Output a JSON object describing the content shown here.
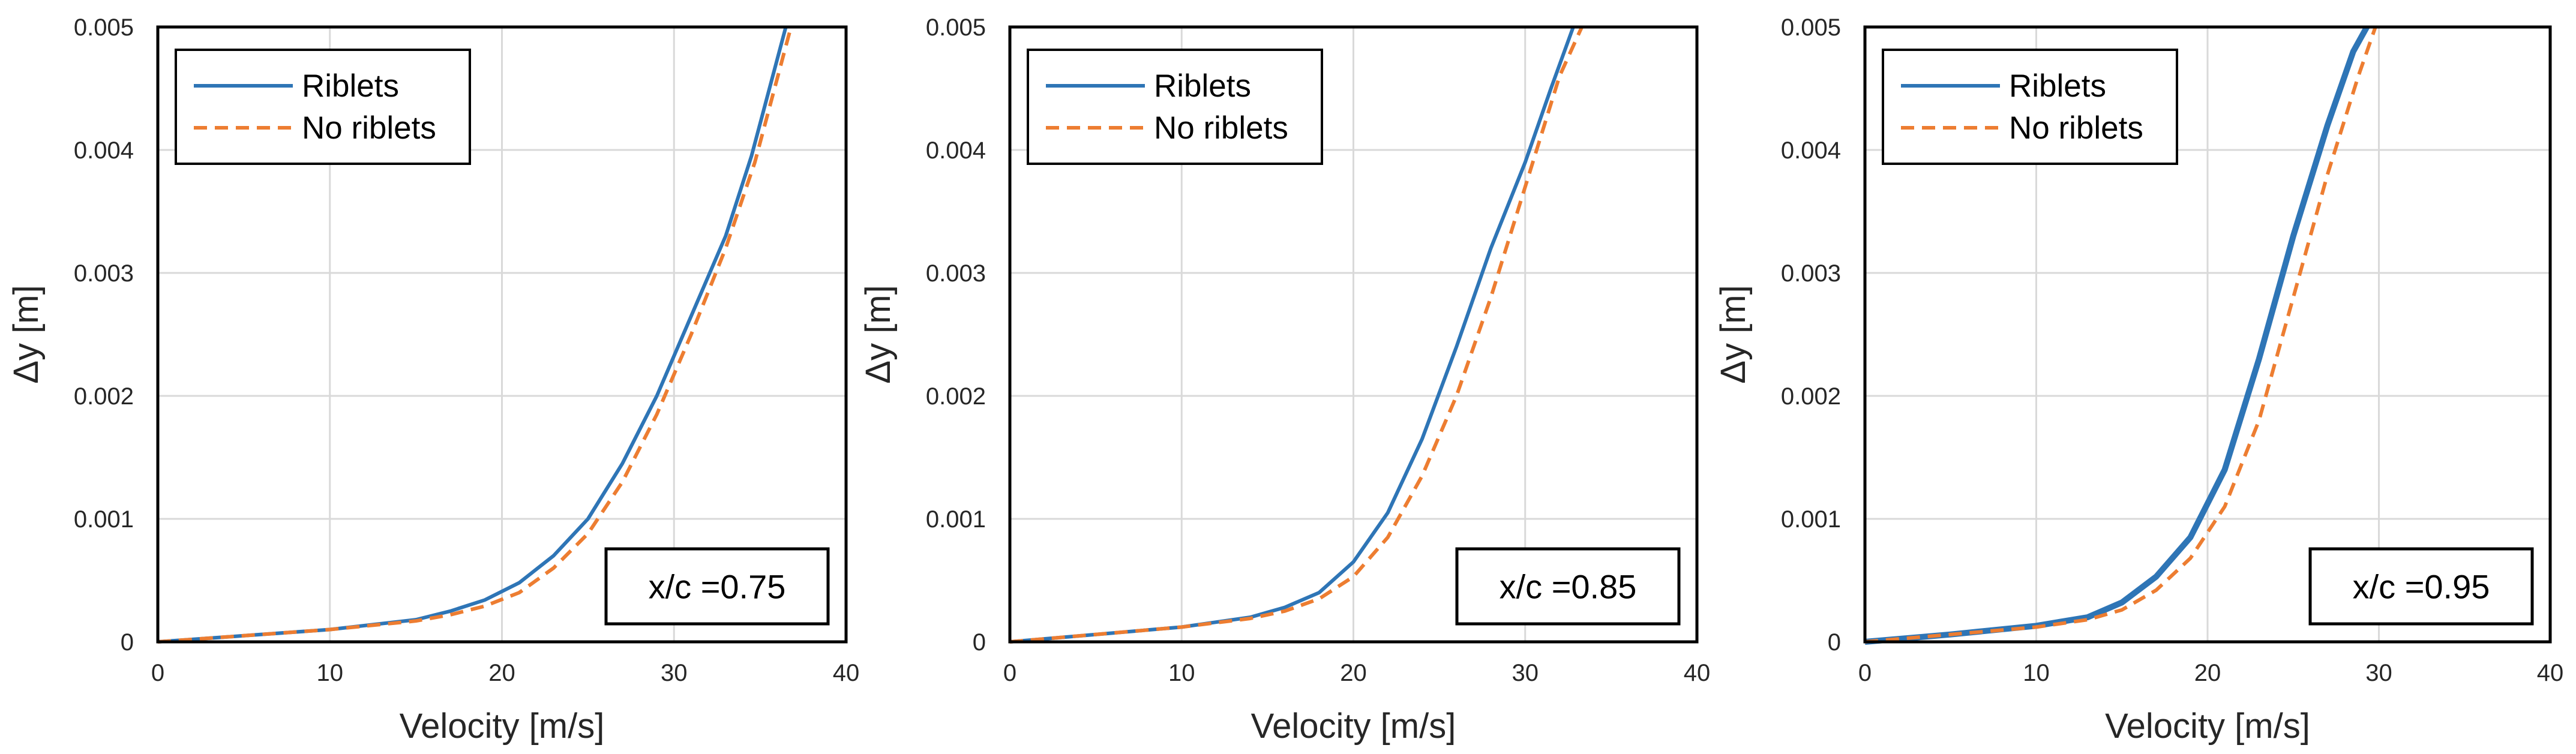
{
  "colors": {
    "riblets": "#2E75B6",
    "no_riblets": "#ED7D31",
    "grid": "#D9D9D9",
    "frame": "#000000"
  },
  "chart_data": [
    {
      "type": "line",
      "xlabel": "Velocity [m/s]",
      "ylabel": "Δy [m]",
      "xlim": [
        0,
        40
      ],
      "ylim": [
        0,
        0.005
      ],
      "xticks": [
        "0",
        "10",
        "20",
        "30",
        "40"
      ],
      "yticks": [
        "0",
        "0.001",
        "0.002",
        "0.003",
        "0.004",
        "0.005"
      ],
      "annotation": "x/c =0.75",
      "grid": true,
      "legend_position": "top-left",
      "series": [
        {
          "name": "Riblets",
          "style": "solid",
          "x": [
            0,
            5,
            10,
            15,
            17,
            19,
            21,
            23,
            25,
            27,
            29,
            31,
            33,
            34.5,
            36.5
          ],
          "y": [
            0,
            5e-05,
            0.0001,
            0.00018,
            0.00025,
            0.00034,
            0.00048,
            0.0007,
            0.001,
            0.00145,
            0.002,
            0.00265,
            0.0033,
            0.00395,
            0.005
          ]
        },
        {
          "name": "No riblets",
          "style": "dashed",
          "x": [
            0,
            5,
            10,
            15,
            17,
            19,
            21,
            23,
            25,
            27,
            29,
            31,
            33,
            34.7,
            36.8
          ],
          "y": [
            0,
            5e-05,
            0.0001,
            0.00017,
            0.00022,
            0.00029,
            0.0004,
            0.0006,
            0.00088,
            0.0013,
            0.00185,
            0.0025,
            0.0032,
            0.0039,
            0.005
          ]
        }
      ]
    },
    {
      "type": "line",
      "xlabel": "Velocity [m/s]",
      "ylabel": "Δy [m]",
      "xlim": [
        0,
        40
      ],
      "ylim": [
        0,
        0.005
      ],
      "xticks": [
        "0",
        "10",
        "20",
        "30",
        "40"
      ],
      "yticks": [
        "0",
        "0.001",
        "0.002",
        "0.003",
        "0.004",
        "0.005"
      ],
      "annotation": "x/c =0.85",
      "grid": true,
      "legend_position": "top-left",
      "series": [
        {
          "name": "Riblets",
          "style": "solid",
          "x": [
            0,
            5,
            10,
            14,
            16,
            18,
            20,
            22,
            24,
            26,
            28,
            30,
            31.5,
            32.8
          ],
          "y": [
            0,
            6e-05,
            0.00012,
            0.0002,
            0.00028,
            0.0004,
            0.00065,
            0.00105,
            0.00165,
            0.0024,
            0.0032,
            0.0039,
            0.0045,
            0.005
          ]
        },
        {
          "name": "No riblets",
          "style": "dashed",
          "x": [
            0,
            5,
            10,
            14,
            16,
            18,
            20,
            22,
            24,
            26,
            28,
            30,
            32,
            33.3
          ],
          "y": [
            0,
            6e-05,
            0.00012,
            0.00019,
            0.00025,
            0.00035,
            0.00053,
            0.00085,
            0.00135,
            0.002,
            0.0028,
            0.0037,
            0.0046,
            0.005
          ]
        }
      ]
    },
    {
      "type": "line",
      "xlabel": "Velocity [m/s]",
      "ylabel": "Δy [m]",
      "xlim": [
        0,
        40
      ],
      "ylim": [
        0,
        0.005
      ],
      "xticks": [
        "0",
        "10",
        "20",
        "30",
        "40"
      ],
      "yticks": [
        "0",
        "0.001",
        "0.002",
        "0.003",
        "0.004",
        "0.005"
      ],
      "annotation": "x/c =0.95",
      "grid": true,
      "legend_position": "top-left",
      "series": [
        {
          "name": "Riblets",
          "style": "solid",
          "x": [
            0,
            5,
            10,
            13,
            15,
            17,
            19,
            21,
            23,
            25,
            27,
            28.5,
            29.3
          ],
          "y": [
            0,
            6e-05,
            0.00013,
            0.0002,
            0.00032,
            0.00053,
            0.00085,
            0.0014,
            0.0023,
            0.0033,
            0.0042,
            0.0048,
            0.005
          ]
        },
        {
          "name": "No riblets",
          "style": "dashed",
          "x": [
            0,
            5,
            10,
            13,
            15,
            17,
            19,
            21,
            23,
            25,
            27,
            28.8,
            29.8
          ],
          "y": [
            0,
            6e-05,
            0.00012,
            0.00018,
            0.00026,
            0.00042,
            0.00068,
            0.0011,
            0.0018,
            0.0028,
            0.0038,
            0.0046,
            0.005
          ]
        }
      ]
    }
  ]
}
